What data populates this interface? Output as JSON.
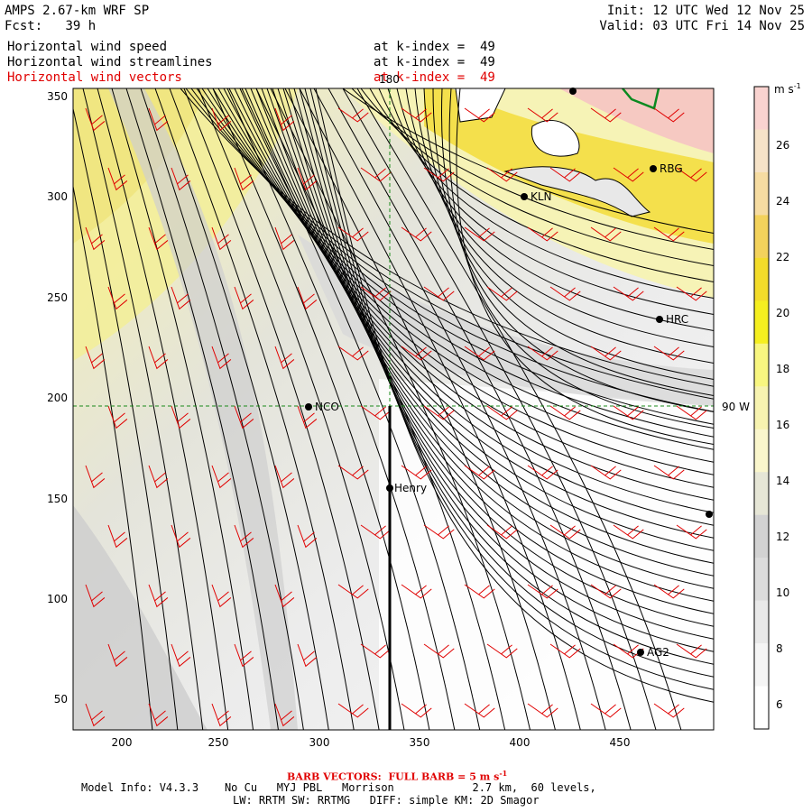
{
  "header": {
    "title": "AMPS 2.67-km WRF SP",
    "fcst_label": "Fcst:",
    "fcst_value": "39 h",
    "init": "Init: 12 UTC Wed 12 Nov 25",
    "valid": "Valid: 03 UTC Fri 14 Nov 25",
    "fields": [
      {
        "name": "Horizontal wind speed",
        "level": "at k-index =  49"
      },
      {
        "name": "Horizontal wind streamlines",
        "level": "at k-index =  49"
      },
      {
        "name": "Horizontal wind vectors",
        "level": "at k-index =  49"
      }
    ]
  },
  "axes": {
    "x_ticks": [
      "200",
      "250",
      "300",
      "350",
      "400",
      "450"
    ],
    "y_ticks": [
      "350",
      "300",
      "250",
      "200",
      "150",
      "100",
      "50"
    ],
    "meridian_label": "180",
    "parallel_label": "90 W"
  },
  "stations": [
    "RBG",
    "KLN",
    "HRC",
    "NCO",
    "Henry",
    "AG2"
  ],
  "colorbar": {
    "unit": "m s",
    "unit_exp": "-1",
    "labels": [
      "26",
      "24",
      "22",
      "20",
      "18",
      "16",
      "14",
      "12",
      "10",
      "8",
      "6"
    ],
    "colors": [
      "#f9d3d0",
      "#f6e3c8",
      "#f6dca2",
      "#f3d25c",
      "#f3dc2a",
      "#f5ef20",
      "#f8f680",
      "#f7f3b0",
      "#faf6cc",
      "#e6e6d6",
      "#d2d2d2",
      "#dcdcdc",
      "#e9e9e9",
      "#f5f5f5",
      "#ffffff"
    ]
  },
  "footer": {
    "barb_note": "BARB VECTORS:  FULL BARB = 5 m s",
    "barb_exp": "-1",
    "model_info": "Model Info: V4.3.3    No Cu   MYJ PBL   Morrison            2.7 km,  60 levels,",
    "physics": "LW: RRTM SW: RRTMG   DIFF: simple KM: 2D Smagor"
  }
}
